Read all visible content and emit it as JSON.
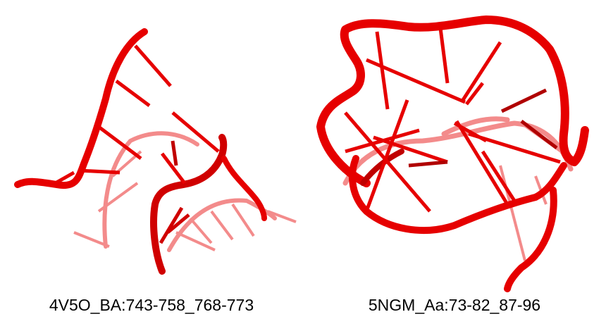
{
  "colors": {
    "backbone": "#e60000",
    "backbone_dark": "#b00000",
    "backbone_faded": "#f08080"
  },
  "structures": [
    {
      "label": "4V5O_BA:743-758_768-773"
    },
    {
      "label": "5NGM_Aa:73-82_87-96"
    }
  ]
}
